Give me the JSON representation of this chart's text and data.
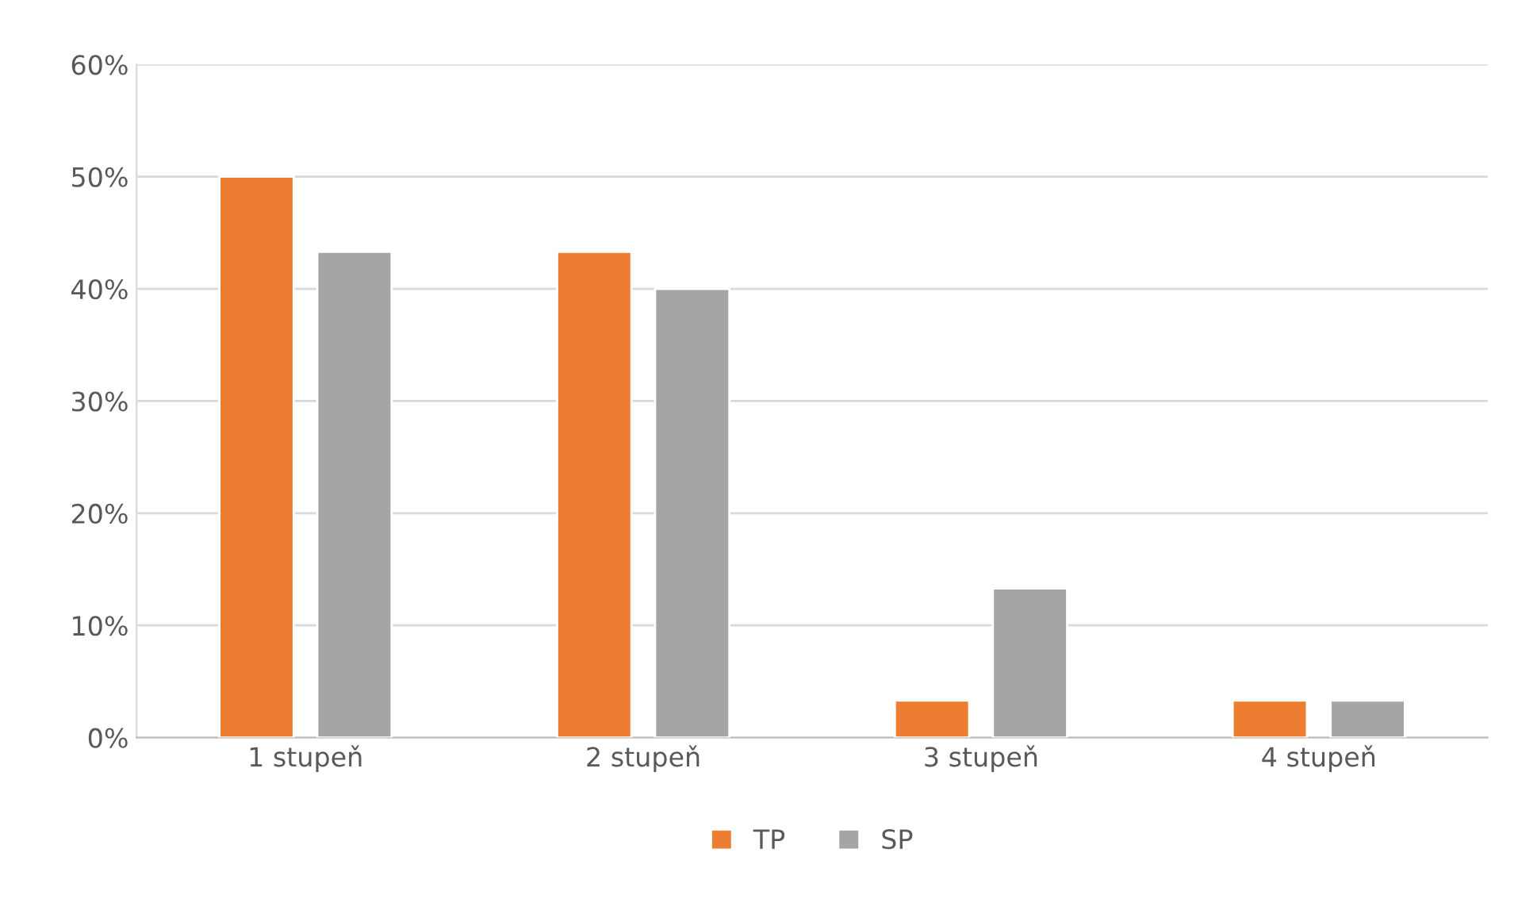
{
  "chart_data": {
    "type": "bar",
    "categories": [
      "1 stupeň",
      "2 stupeň",
      "3 stupeň",
      "4 stupeň"
    ],
    "series": [
      {
        "name": "TP",
        "color": "#ed7d31",
        "values": [
          50,
          43.3,
          3.3,
          3.3
        ]
      },
      {
        "name": "SP",
        "color": "#a5a5a5",
        "values": [
          43.3,
          40,
          13.3,
          3.3
        ]
      }
    ],
    "ylim": [
      0,
      60
    ],
    "yticks": [
      {
        "value": 0,
        "label": "0%"
      },
      {
        "value": 10,
        "label": "10%"
      },
      {
        "value": 20,
        "label": "20%"
      },
      {
        "value": 30,
        "label": "30%"
      },
      {
        "value": 40,
        "label": "40%"
      },
      {
        "value": 50,
        "label": "50%"
      },
      {
        "value": 60,
        "label": "60%"
      }
    ],
    "grid": "y",
    "legend": "bottom"
  }
}
